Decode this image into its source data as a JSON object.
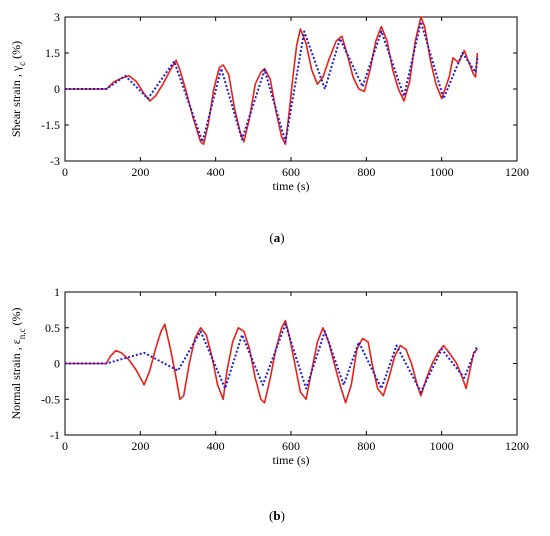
{
  "chart_data": [
    {
      "type": "line",
      "ylabel_parts": [
        "Shear strain , γ",
        "c",
        " (%)"
      ],
      "xlabel": "time (s)",
      "caption": [
        "(",
        "a",
        ")"
      ],
      "xlim": [
        0,
        1200
      ],
      "xticks": [
        0,
        200,
        400,
        600,
        800,
        1000,
        1200
      ],
      "ylim": [
        -3,
        3
      ],
      "yticks": [
        -3,
        -1.5,
        0,
        1.5,
        3
      ],
      "series": [
        {
          "color": "#e8201a",
          "style": "solid",
          "x": [
            0,
            110,
            130,
            150,
            170,
            190,
            210,
            225,
            240,
            260,
            280,
            295,
            305,
            320,
            340,
            360,
            368,
            380,
            395,
            410,
            420,
            435,
            450,
            465,
            475,
            490,
            505,
            520,
            530,
            545,
            560,
            575,
            585,
            595,
            605,
            615,
            625,
            640,
            655,
            670,
            685,
            700,
            720,
            735,
            750,
            765,
            780,
            795,
            810,
            825,
            840,
            855,
            870,
            885,
            900,
            915,
            930,
            945,
            955,
            970,
            985,
            1000,
            1020,
            1030,
            1045,
            1060,
            1075,
            1085,
            1090,
            1095
          ],
          "values": [
            0,
            0,
            0.3,
            0.45,
            0.55,
            0.3,
            -0.2,
            -0.5,
            -0.3,
            0.2,
            0.8,
            1.2,
            0.8,
            0,
            -1.2,
            -2.2,
            -2.3,
            -1.5,
            0,
            0.9,
            1.0,
            0.6,
            -0.8,
            -1.8,
            -2.2,
            -1.2,
            0.2,
            0.7,
            0.85,
            0.4,
            -0.9,
            -2.0,
            -2.3,
            -1.0,
            0.5,
            1.8,
            2.5,
            1.9,
            0.8,
            0.2,
            0.5,
            1.2,
            2.0,
            2.2,
            1.4,
            0.5,
            0,
            -0.1,
            0.8,
            2.0,
            2.6,
            2.0,
            0.8,
            0,
            -0.5,
            0.3,
            2.0,
            3.0,
            2.6,
            1.2,
            0.2,
            -0.4,
            0.5,
            1.3,
            1.1,
            1.6,
            1.0,
            0.6,
            0.5,
            1.5
          ]
        },
        {
          "color": "#1f1fd0",
          "style": "dotted",
          "x": [
            0,
            110,
            160,
            220,
            290,
            365,
            415,
            470,
            530,
            585,
            635,
            690,
            730,
            790,
            840,
            900,
            945,
            1005,
            1055,
            1090,
            1095
          ],
          "values": [
            0,
            0,
            0.55,
            -0.4,
            1.15,
            -2.2,
            0.85,
            -2.1,
            0.8,
            -2.2,
            2.4,
            0,
            2.1,
            0.1,
            2.4,
            -0.3,
            2.8,
            -0.4,
            1.5,
            0.7,
            1.3
          ]
        }
      ]
    },
    {
      "type": "line",
      "ylabel_parts": [
        "Normal strain , ε",
        "n,c",
        " (%)"
      ],
      "xlabel": "time (s)",
      "caption": [
        "(",
        "b",
        ")"
      ],
      "xlim": [
        0,
        1200
      ],
      "xticks": [
        0,
        200,
        400,
        600,
        800,
        1000,
        1200
      ],
      "ylim": [
        -1,
        1
      ],
      "yticks": [
        -1,
        -0.5,
        0,
        0.5,
        1
      ],
      "series": [
        {
          "color": "#e8201a",
          "style": "solid",
          "x": [
            0,
            110,
            120,
            135,
            150,
            170,
            190,
            210,
            225,
            240,
            255,
            265,
            280,
            295,
            305,
            315,
            330,
            345,
            360,
            375,
            390,
            405,
            420,
            430,
            445,
            460,
            475,
            490,
            505,
            520,
            530,
            545,
            560,
            575,
            585,
            595,
            610,
            625,
            640,
            655,
            670,
            685,
            700,
            715,
            730,
            745,
            760,
            775,
            790,
            805,
            815,
            830,
            845,
            860,
            875,
            890,
            905,
            920,
            935,
            945,
            960,
            975,
            990,
            1005,
            1020,
            1040,
            1055,
            1065,
            1075,
            1085,
            1095
          ],
          "values": [
            0,
            0,
            0.1,
            0.18,
            0.15,
            0.05,
            -0.1,
            -0.3,
            -0.1,
            0.2,
            0.45,
            0.55,
            0.2,
            -0.2,
            -0.5,
            -0.45,
            0,
            0.35,
            0.5,
            0.4,
            0.1,
            -0.3,
            -0.5,
            -0.1,
            0.3,
            0.5,
            0.45,
            0.2,
            -0.2,
            -0.5,
            -0.55,
            -0.2,
            0.2,
            0.5,
            0.6,
            0.4,
            0,
            -0.4,
            -0.5,
            -0.1,
            0.3,
            0.5,
            0.3,
            0,
            -0.3,
            -0.55,
            -0.3,
            0.2,
            0.35,
            0.3,
            0,
            -0.35,
            -0.45,
            -0.2,
            0.1,
            0.25,
            0.2,
            0,
            -0.3,
            -0.45,
            -0.2,
            0,
            0.15,
            0.25,
            0.15,
            0,
            -0.2,
            -0.35,
            -0.1,
            0.15,
            0.2
          ]
        },
        {
          "color": "#1f1fd0",
          "style": "dotted",
          "x": [
            0,
            110,
            210,
            300,
            360,
            425,
            470,
            525,
            585,
            640,
            690,
            740,
            780,
            840,
            880,
            945,
            1000,
            1060,
            1095
          ],
          "values": [
            0,
            0,
            0.15,
            -0.1,
            0.45,
            -0.35,
            0.4,
            -0.3,
            0.55,
            -0.35,
            0.45,
            -0.3,
            0.3,
            -0.35,
            0.25,
            -0.4,
            0.2,
            -0.2,
            0.25
          ]
        }
      ]
    }
  ]
}
